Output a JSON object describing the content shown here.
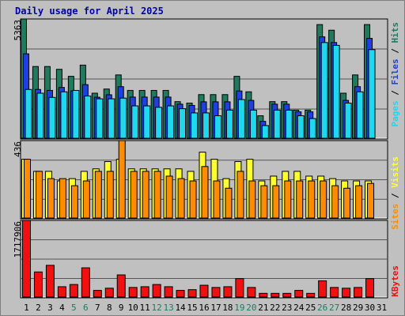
{
  "title": "Daily usage for April 2025",
  "colors": {
    "hits": "#1f7a5f",
    "files": "#1f3fe0",
    "pages": "#1fd8f0",
    "visits": "#ffff30",
    "sites": "#ff8c00",
    "kbytes": "#f01010",
    "weekend_label": "#1f7a5f",
    "weekday_label": "#000000"
  },
  "chart_data": [
    {
      "type": "bar",
      "panel": "top",
      "ymax_label": "5363",
      "ylim": [
        0,
        5363
      ],
      "legend": [
        "Pages",
        "/",
        "Files",
        "/",
        "Hits"
      ],
      "categories": [
        "1",
        "2",
        "3",
        "4",
        "5",
        "6",
        "7",
        "8",
        "9",
        "10",
        "11",
        "12",
        "13",
        "14",
        "15",
        "16",
        "17",
        "18",
        "19",
        "20",
        "21",
        "22",
        "23",
        "24",
        "25",
        "26",
        "27",
        "28",
        "29",
        "30",
        "31"
      ],
      "weekend_days": [
        "5",
        "6",
        "12",
        "13",
        "19",
        "20",
        "26",
        "27"
      ],
      "series": [
        {
          "name": "Hits",
          "values": [
            5363,
            3225,
            3225,
            3099,
            2784,
            3288,
            2025,
            2213,
            2847,
            2151,
            2151,
            2151,
            2151,
            1645,
            1581,
            1962,
            1962,
            1962,
            2784,
            2088,
            1012,
            1645,
            1645,
            1265,
            1265,
            5110,
            4857,
            2025,
            2847,
            5110,
            0
          ]
        },
        {
          "name": "Files",
          "values": [
            3795,
            2193,
            2152,
            2284,
            2125,
            2410,
            1844,
            1954,
            2319,
            1851,
            1851,
            1851,
            1851,
            1532,
            1477,
            1638,
            1638,
            1638,
            2125,
            1702,
            760,
            1532,
            1532,
            1187,
            1187,
            4559,
            4304,
            1702,
            2319,
            4490,
            0
          ]
        },
        {
          "name": "Pages",
          "values": [
            2193,
            2025,
            1836,
            2088,
            2151,
            1899,
            1773,
            1773,
            1805,
            1455,
            1455,
            1391,
            1455,
            1328,
            1139,
            1139,
            1012,
            1265,
            1740,
            1265,
            570,
            1265,
            1265,
            1012,
            886,
            4303,
            4177,
            1581,
            2088,
            3985,
            0
          ]
        }
      ]
    },
    {
      "type": "bar",
      "panel": "middle",
      "ymax_label": "436",
      "ylim": [
        0,
        436
      ],
      "legend": [
        "Sites",
        "/",
        "Visits"
      ],
      "categories": [
        "1",
        "2",
        "3",
        "4",
        "5",
        "6",
        "7",
        "8",
        "9",
        "10",
        "11",
        "12",
        "13",
        "14",
        "15",
        "16",
        "17",
        "18",
        "19",
        "20",
        "21",
        "22",
        "23",
        "24",
        "25",
        "26",
        "27",
        "28",
        "29",
        "30",
        "31"
      ],
      "series": [
        {
          "name": "Visits",
          "values": [
            331,
            263,
            263,
            209,
            222,
            263,
            277,
            318,
            331,
            277,
            277,
            277,
            277,
            277,
            263,
            371,
            331,
            222,
            318,
            331,
            209,
            236,
            263,
            263,
            236,
            236,
            222,
            209,
            209,
            209,
            0
          ]
        },
        {
          "name": "Sites",
          "values": [
            331,
            263,
            222,
            222,
            182,
            209,
            263,
            263,
            436,
            263,
            263,
            263,
            236,
            222,
            209,
            290,
            209,
            168,
            263,
            209,
            182,
            182,
            209,
            209,
            209,
            209,
            182,
            168,
            182,
            195,
            0
          ]
        }
      ]
    },
    {
      "type": "bar",
      "panel": "bottom",
      "ymax_label": "1717906",
      "ylim": [
        0,
        1717906
      ],
      "legend": [
        "KBytes"
      ],
      "categories": [
        "1",
        "2",
        "3",
        "4",
        "5",
        "6",
        "7",
        "8",
        "9",
        "10",
        "11",
        "12",
        "13",
        "14",
        "15",
        "16",
        "17",
        "18",
        "19",
        "20",
        "21",
        "22",
        "23",
        "24",
        "25",
        "26",
        "27",
        "28",
        "29",
        "30",
        "31"
      ],
      "series": [
        {
          "name": "KBytes",
          "values": [
            1717906,
            562437,
            711336,
            231552,
            281186,
            655071,
            148845,
            198479,
            496333,
            214998,
            231552,
            281186,
            231552,
            148845,
            165398,
            264632,
            214998,
            231552,
            413630,
            214998,
            82672,
            82672,
            82672,
            148845,
            82672,
            364017,
            214998,
            198479,
            214998,
            413630,
            0
          ]
        }
      ]
    }
  ]
}
